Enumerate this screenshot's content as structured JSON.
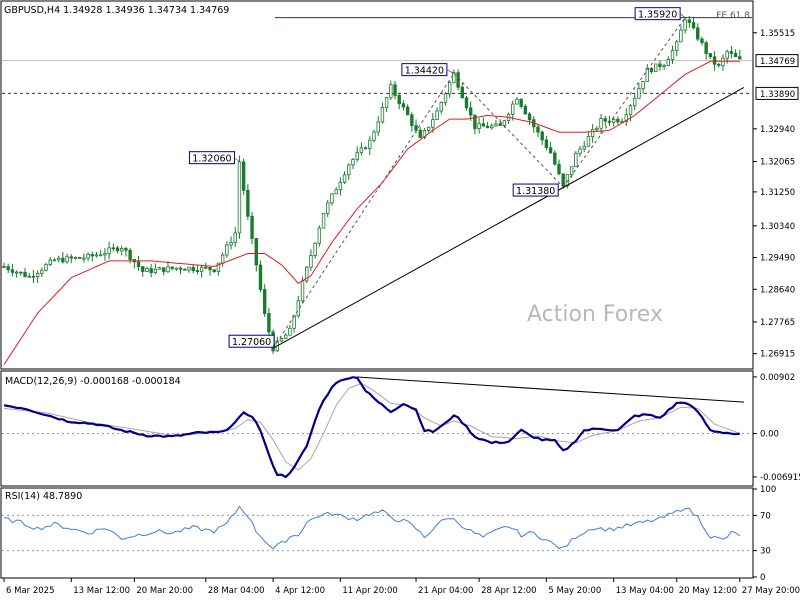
{
  "header": {
    "symbol_info": "GBPUSD,H4  1.34928 1.34936 1.34734 1.34769",
    "fe_label": "FE 61.8"
  },
  "watermark": "Action Forex",
  "colors": {
    "candle": "#1a7a2e",
    "ma": "#e21b22",
    "macd": "#00008b",
    "signal": "#a8a8a8",
    "rsi": "#3d7edb",
    "trendline": "#000000",
    "label_border": "#00008b"
  },
  "chart_data": [
    {
      "type": "candlestick",
      "name": "price",
      "ylim": [
        1.2653,
        1.3634
      ],
      "y_ticks": [
        "1.35515",
        "1.32940",
        "1.32065",
        "1.31250",
        "1.30340",
        "1.29490",
        "1.28640",
        "1.27765",
        "1.26915"
      ],
      "current_price": "1.34769",
      "level_line": "1.33890",
      "fe_level": "1.35920",
      "swing_labels": [
        "1.35920",
        "1.34420",
        "1.32060",
        "1.31380",
        "1.27060"
      ],
      "swings": [
        {
          "label": "1.35920",
          "value": 1.3592,
          "index": 162
        },
        {
          "label": "1.34420",
          "value": 1.3442,
          "index": 107
        },
        {
          "label": "1.32060",
          "value": 1.3206,
          "index": 56
        },
        {
          "label": "1.31380",
          "value": 1.3138,
          "index": 133
        },
        {
          "label": "1.27060",
          "value": 1.2706,
          "index": 64
        }
      ],
      "anchors": [
        [
          0,
          1.2925
        ],
        [
          6,
          1.2898
        ],
        [
          12,
          1.2942
        ],
        [
          20,
          1.295
        ],
        [
          28,
          1.2978
        ],
        [
          33,
          1.2912
        ],
        [
          42,
          1.2922
        ],
        [
          50,
          1.2918
        ],
        [
          55,
          1.3015
        ],
        [
          56,
          1.3206
        ],
        [
          58,
          1.3055
        ],
        [
          60,
          1.293
        ],
        [
          62,
          1.2795
        ],
        [
          64,
          1.2706
        ],
        [
          68,
          1.2752
        ],
        [
          71,
          1.288
        ],
        [
          76,
          1.307
        ],
        [
          82,
          1.32
        ],
        [
          87,
          1.326
        ],
        [
          92,
          1.3405
        ],
        [
          96,
          1.333
        ],
        [
          99,
          1.3265
        ],
        [
          103,
          1.334
        ],
        [
          107,
          1.3442
        ],
        [
          112,
          1.33
        ],
        [
          118,
          1.33
        ],
        [
          122,
          1.338
        ],
        [
          126,
          1.33
        ],
        [
          130,
          1.323
        ],
        [
          133,
          1.3138
        ],
        [
          136,
          1.3225
        ],
        [
          142,
          1.3315
        ],
        [
          147,
          1.332
        ],
        [
          150,
          1.338
        ],
        [
          153,
          1.345
        ],
        [
          157,
          1.347
        ],
        [
          160,
          1.352
        ],
        [
          162,
          1.3592
        ],
        [
          165,
          1.354
        ],
        [
          168,
          1.348
        ],
        [
          170,
          1.346
        ],
        [
          172,
          1.35
        ],
        [
          175,
          1.3477
        ]
      ],
      "moving_average": [
        [
          0,
          1.2662
        ],
        [
          8,
          1.28
        ],
        [
          16,
          1.2895
        ],
        [
          25,
          1.294
        ],
        [
          35,
          1.294
        ],
        [
          50,
          1.2925
        ],
        [
          58,
          1.296
        ],
        [
          62,
          1.296
        ],
        [
          66,
          1.293
        ],
        [
          70,
          1.288
        ],
        [
          73,
          1.29
        ],
        [
          78,
          1.299
        ],
        [
          84,
          1.308
        ],
        [
          90,
          1.315
        ],
        [
          96,
          1.324
        ],
        [
          102,
          1.329
        ],
        [
          106,
          1.332
        ],
        [
          110,
          1.332
        ],
        [
          115,
          1.333
        ],
        [
          120,
          1.3325
        ],
        [
          126,
          1.331
        ],
        [
          132,
          1.3285
        ],
        [
          138,
          1.3285
        ],
        [
          144,
          1.329
        ],
        [
          150,
          1.333
        ],
        [
          156,
          1.3385
        ],
        [
          162,
          1.344
        ],
        [
          168,
          1.3475
        ],
        [
          175,
          1.3475
        ]
      ],
      "trendlines": [
        {
          "from": [
            64,
            1.2706
          ],
          "to": [
            176,
            1.3405
          ]
        },
        {
          "from": [
            64,
            1.2706
          ],
          "to": [
            107,
            1.3442
          ],
          "dashed": true
        },
        {
          "from": [
            107,
            1.3442
          ],
          "to": [
            133,
            1.3138
          ],
          "dashed": true
        },
        {
          "from": [
            133,
            1.3138
          ],
          "to": [
            162,
            1.3592
          ],
          "dashed": true
        }
      ],
      "x_tick_labels": [
        "6 Mar 2025",
        "13 Mar 12:00",
        "20 Mar 20:00",
        "28 Mar 04:00",
        "4 Apr 12:00",
        "11 Apr 20:00",
        "21 Apr 04:00",
        "28 Apr 12:00",
        "5 May 20:00",
        "13 May 04:00",
        "20 May 12:00",
        "27 May 20:00"
      ],
      "x_tick_index": [
        0,
        16,
        31,
        48,
        64,
        80,
        98,
        113,
        129,
        145,
        160,
        175
      ]
    },
    {
      "type": "line",
      "name": "MACD",
      "title": "MACD(12,26,9) -0.000168 -0.000184",
      "ylim": [
        -0.0082,
        0.0098
      ],
      "y_ticks": [
        "0.00902",
        "0.00",
        "-0.006915"
      ],
      "macd_anchors": [
        [
          0,
          0.0045
        ],
        [
          5,
          0.004
        ],
        [
          10,
          0.003
        ],
        [
          15,
          0.002
        ],
        [
          22,
          0.0015
        ],
        [
          28,
          0.0005
        ],
        [
          34,
          -0.0003
        ],
        [
          40,
          -0.0005
        ],
        [
          46,
          0.0001
        ],
        [
          52,
          0.0002
        ],
        [
          55,
          0.0018
        ],
        [
          57,
          0.0032
        ],
        [
          59,
          0.0028
        ],
        [
          61,
          0.0005
        ],
        [
          63,
          -0.0035
        ],
        [
          65,
          -0.0065
        ],
        [
          67,
          -0.0068
        ],
        [
          69,
          -0.0055
        ],
        [
          72,
          -0.002
        ],
        [
          75,
          0.004
        ],
        [
          78,
          0.0075
        ],
        [
          81,
          0.0088
        ],
        [
          84,
          0.009
        ],
        [
          86,
          0.0068
        ],
        [
          89,
          0.005
        ],
        [
          92,
          0.0035
        ],
        [
          95,
          0.0048
        ],
        [
          98,
          0.0038
        ],
        [
          100,
          0.0005
        ],
        [
          102,
          0.0003
        ],
        [
          105,
          0.0016
        ],
        [
          107,
          0.003
        ],
        [
          109,
          0.0018
        ],
        [
          112,
          -0.0005
        ],
        [
          116,
          -0.0015
        ],
        [
          120,
          -0.0013
        ],
        [
          123,
          0.0005
        ],
        [
          125,
          -0.0003
        ],
        [
          128,
          -0.001
        ],
        [
          131,
          -0.0012
        ],
        [
          133,
          -0.0028
        ],
        [
          135,
          -0.0018
        ],
        [
          138,
          0.0005
        ],
        [
          142,
          0.0008
        ],
        [
          146,
          0.0005
        ],
        [
          150,
          0.0028
        ],
        [
          153,
          0.003
        ],
        [
          156,
          0.0025
        ],
        [
          160,
          0.0048
        ],
        [
          162,
          0.005
        ],
        [
          165,
          0.0035
        ],
        [
          168,
          0.0005
        ],
        [
          172,
          0.0001
        ],
        [
          175,
          -0.0002
        ]
      ],
      "signal_anchors": [
        [
          0,
          0.004
        ],
        [
          10,
          0.0033
        ],
        [
          20,
          0.0018
        ],
        [
          30,
          0.0008
        ],
        [
          40,
          -0.0003
        ],
        [
          50,
          0.0001
        ],
        [
          55,
          0.0008
        ],
        [
          58,
          0.0022
        ],
        [
          61,
          0.0018
        ],
        [
          64,
          -0.001
        ],
        [
          67,
          -0.0045
        ],
        [
          70,
          -0.0058
        ],
        [
          73,
          -0.004
        ],
        [
          76,
          0.0
        ],
        [
          79,
          0.0045
        ],
        [
          82,
          0.0072
        ],
        [
          85,
          0.008
        ],
        [
          88,
          0.0068
        ],
        [
          92,
          0.0048
        ],
        [
          96,
          0.0045
        ],
        [
          100,
          0.0025
        ],
        [
          104,
          0.0012
        ],
        [
          107,
          0.002
        ],
        [
          111,
          0.0012
        ],
        [
          116,
          -0.0005
        ],
        [
          122,
          -0.0008
        ],
        [
          127,
          -0.0004
        ],
        [
          132,
          -0.0012
        ],
        [
          136,
          -0.0015
        ],
        [
          140,
          -0.0003
        ],
        [
          146,
          0.0005
        ],
        [
          151,
          0.002
        ],
        [
          156,
          0.0025
        ],
        [
          161,
          0.0042
        ],
        [
          165,
          0.004
        ],
        [
          169,
          0.0015
        ],
        [
          175,
          0.0
        ]
      ],
      "trendline": {
        "from": [
          84,
          0.009
        ],
        "to": [
          176,
          0.005
        ]
      }
    },
    {
      "type": "line",
      "name": "RSI",
      "title": "RSI(14) 48.7890",
      "ylim": [
        0,
        100
      ],
      "y_ticks": [
        "100",
        "70",
        "30",
        "0"
      ],
      "levels": [
        70,
        30
      ],
      "anchors": [
        [
          0,
          66
        ],
        [
          4,
          62
        ],
        [
          8,
          55
        ],
        [
          12,
          60
        ],
        [
          16,
          55
        ],
        [
          20,
          50
        ],
        [
          24,
          56
        ],
        [
          28,
          44
        ],
        [
          32,
          48
        ],
        [
          36,
          52
        ],
        [
          40,
          50
        ],
        [
          45,
          56
        ],
        [
          50,
          52
        ],
        [
          53,
          60
        ],
        [
          56,
          80
        ],
        [
          58,
          70
        ],
        [
          60,
          52
        ],
        [
          62,
          42
        ],
        [
          64,
          32
        ],
        [
          66,
          38
        ],
        [
          68,
          46
        ],
        [
          70,
          48
        ],
        [
          72,
          62
        ],
        [
          75,
          70
        ],
        [
          78,
          72
        ],
        [
          81,
          68
        ],
        [
          84,
          66
        ],
        [
          87,
          72
        ],
        [
          90,
          74
        ],
        [
          93,
          66
        ],
        [
          96,
          62
        ],
        [
          98,
          55
        ],
        [
          100,
          45
        ],
        [
          103,
          60
        ],
        [
          106,
          68
        ],
        [
          108,
          62
        ],
        [
          111,
          52
        ],
        [
          114,
          45
        ],
        [
          117,
          52
        ],
        [
          120,
          58
        ],
        [
          123,
          48
        ],
        [
          126,
          50
        ],
        [
          129,
          42
        ],
        [
          131,
          36
        ],
        [
          133,
          32
        ],
        [
          136,
          46
        ],
        [
          140,
          56
        ],
        [
          144,
          54
        ],
        [
          148,
          58
        ],
        [
          152,
          62
        ],
        [
          156,
          66
        ],
        [
          160,
          74
        ],
        [
          162,
          80
        ],
        [
          165,
          68
        ],
        [
          168,
          46
        ],
        [
          171,
          42
        ],
        [
          173,
          50
        ],
        [
          175,
          48
        ]
      ]
    }
  ]
}
